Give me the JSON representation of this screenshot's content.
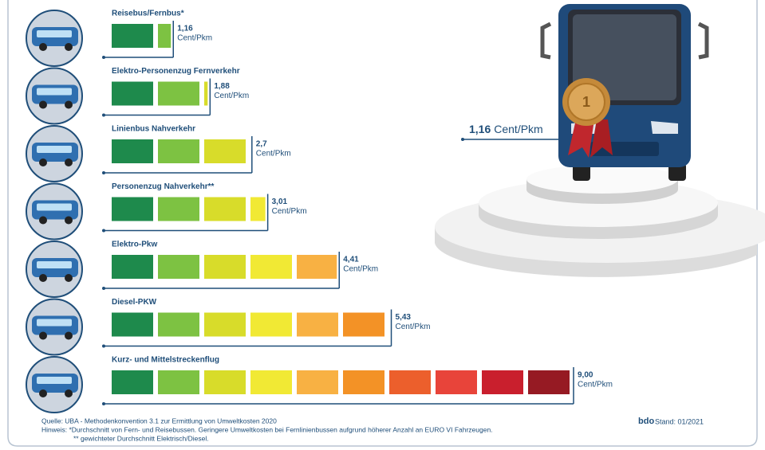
{
  "chart_data": {
    "type": "segmented-bar",
    "categories": [
      "Reisebus/Fernbus*",
      "Elektro-Personenzug Fernverkehr",
      "Linienbus Nahverkehr",
      "Personenzug Nahverkehr**",
      "Elektro-Pkw",
      "Diesel-PKW",
      "Kurz- und Mittelstreckenflug"
    ],
    "values": [
      1.16,
      1.88,
      2.7,
      3.01,
      4.41,
      5.43,
      9.0
    ],
    "value_labels": [
      "1,16",
      "1,88",
      "2,7",
      "3,01",
      "4,41",
      "5,43",
      "9,00"
    ],
    "unit": "Cent/Pkm",
    "colors": [
      "#1e8a4c",
      "#7dc242",
      "#d8dc2a",
      "#f1e934",
      "#f8b143",
      "#f39226",
      "#ec5f2c",
      "#e8443a",
      "#c91f2d",
      "#961a23"
    ]
  },
  "footer": {
    "source": "Quelle: UBA - Methodenkonvention 3.1 zur Ermittlung von Umweltkosten 2020",
    "note1": "Hinweis: *Durchschnitt von Fern- und Reisebussen. Geringere Umweltkosten bei Fernlinienbussen aufgrund höherer Anzahl an EURO VI Fahrzeugen.",
    "note2": "** gewichteter Durchschnitt Elektrisch/Diesel.",
    "logo": "bdo",
    "stand": "Stand: 01/2021"
  }
}
